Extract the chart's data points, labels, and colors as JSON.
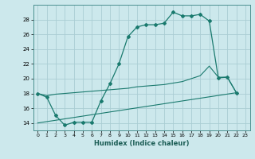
{
  "xlabel": "Humidex (Indice chaleur)",
  "bg_color": "#cce8ec",
  "grid_color": "#aacdd4",
  "line_color": "#1a7a6e",
  "xlim": [
    -0.5,
    23.5
  ],
  "ylim": [
    13.0,
    30.0
  ],
  "yticks": [
    14,
    16,
    18,
    20,
    22,
    24,
    26,
    28
  ],
  "xticks": [
    0,
    1,
    2,
    3,
    4,
    5,
    6,
    7,
    8,
    9,
    10,
    11,
    12,
    13,
    14,
    15,
    16,
    17,
    18,
    19,
    20,
    21,
    22,
    23
  ],
  "line1_x": [
    0,
    1,
    2,
    3,
    4,
    5,
    6,
    7,
    8,
    9,
    10,
    11,
    12,
    13,
    14,
    15,
    16,
    17,
    18,
    19,
    20,
    21,
    22
  ],
  "line1_y": [
    18.0,
    17.5,
    15.0,
    13.7,
    14.1,
    14.1,
    14.1,
    17.0,
    19.3,
    22.0,
    25.7,
    27.0,
    27.3,
    27.3,
    27.5,
    29.0,
    28.5,
    28.5,
    28.7,
    27.8,
    20.1,
    20.2,
    18.1
  ],
  "line2_x": [
    0,
    1,
    2,
    3,
    4,
    5,
    6,
    7,
    8,
    9,
    10,
    11,
    12,
    13,
    14,
    15,
    16,
    17,
    18,
    19,
    20,
    21,
    22
  ],
  "line2_y": [
    18.0,
    17.7,
    17.9,
    18.0,
    18.1,
    18.2,
    18.3,
    18.4,
    18.5,
    18.6,
    18.7,
    18.9,
    19.0,
    19.1,
    19.2,
    19.4,
    19.6,
    20.0,
    20.4,
    21.7,
    20.2,
    20.2,
    18.1
  ],
  "line3_x": [
    0,
    22
  ],
  "line3_y": [
    14.0,
    18.1
  ]
}
